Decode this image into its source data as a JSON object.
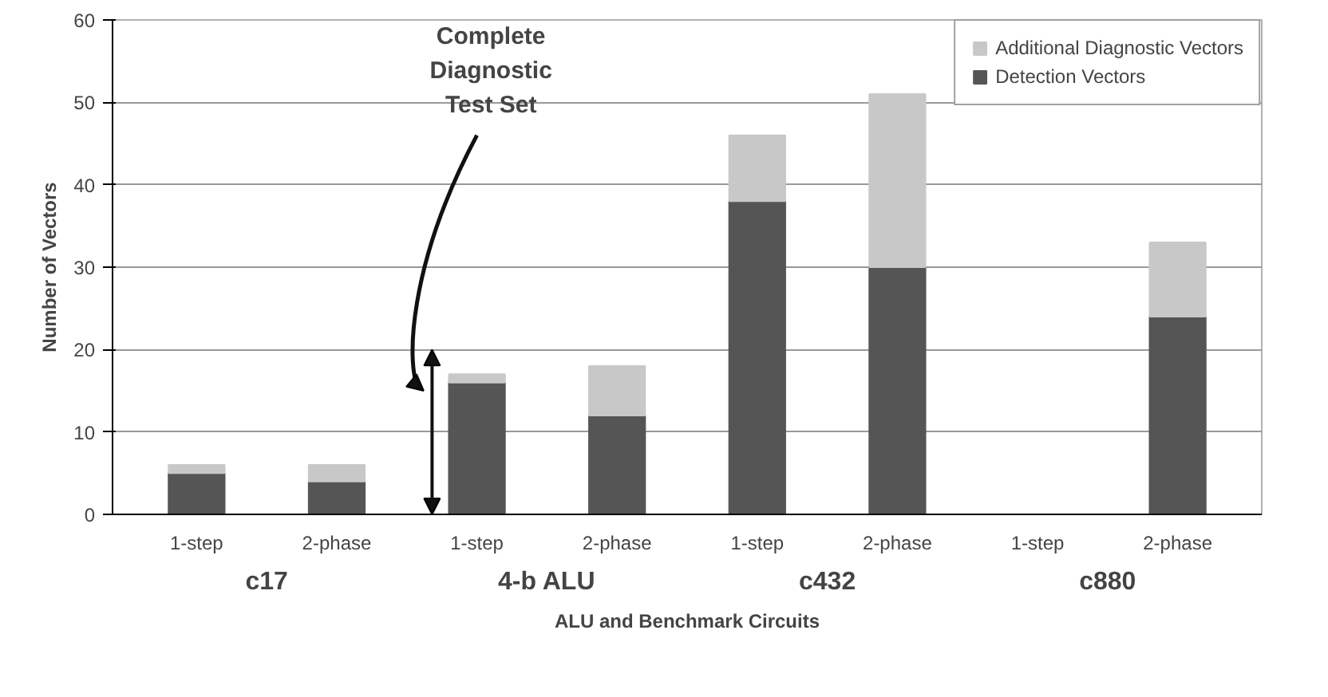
{
  "chart_data": {
    "type": "bar",
    "stacked": true,
    "categories": [
      "1-step",
      "2-phase",
      "1-step",
      "2-phase",
      "1-step",
      "2-phase",
      "1-step",
      "2-phase"
    ],
    "series": [
      {
        "name": "Detection Vectors",
        "color": "#555555",
        "values": [
          5,
          4,
          16,
          12,
          38,
          30,
          0,
          24
        ]
      },
      {
        "name": "Additional Diagnostic Vectors",
        "color": "#c8c8c8",
        "values": [
          1,
          2,
          1,
          6,
          8,
          21,
          0,
          9
        ]
      }
    ],
    "xlabel": "ALU and Benchmark Circuits",
    "ylabel": "Number of Vectors",
    "ylim": [
      0,
      60
    ],
    "yticks": [
      0,
      10,
      20,
      30,
      40,
      50,
      60
    ],
    "grid": "y",
    "legend": "top right",
    "annotations": [
      "c17",
      "4-b ALU",
      "c432",
      "c880",
      "Complete Diagnostic Test Set"
    ]
  }
}
